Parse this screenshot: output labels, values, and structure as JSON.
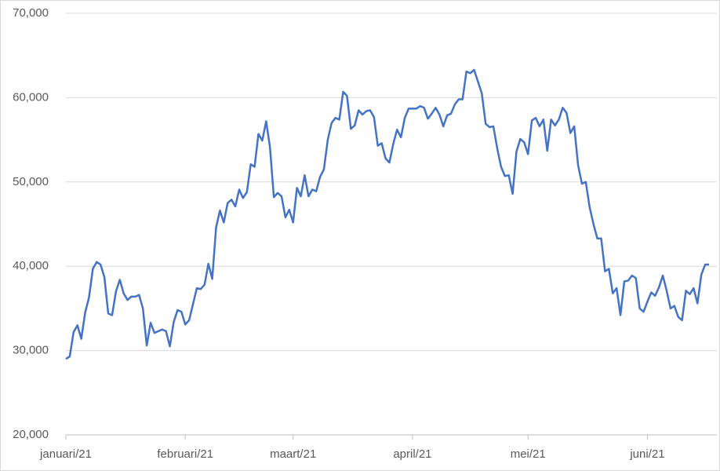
{
  "chart_data": {
    "type": "line",
    "categories": [
      "januari/21",
      null,
      null,
      null,
      null,
      null,
      null,
      null,
      null,
      null,
      null,
      null,
      null,
      null,
      null,
      null,
      null,
      null,
      null,
      null,
      null,
      null,
      null,
      null,
      null,
      null,
      null,
      null,
      null,
      null,
      null,
      "februari/21",
      null,
      null,
      null,
      null,
      null,
      null,
      null,
      null,
      null,
      null,
      null,
      null,
      null,
      null,
      null,
      null,
      null,
      null,
      null,
      null,
      null,
      null,
      null,
      null,
      null,
      null,
      null,
      "maart/21",
      null,
      null,
      null,
      null,
      null,
      null,
      null,
      null,
      null,
      null,
      null,
      null,
      null,
      null,
      null,
      null,
      null,
      null,
      null,
      null,
      null,
      null,
      null,
      null,
      null,
      null,
      null,
      null,
      null,
      null,
      "april/21",
      null,
      null,
      null,
      null,
      null,
      null,
      null,
      null,
      null,
      null,
      null,
      null,
      null,
      null,
      null,
      null,
      null,
      null,
      null,
      null,
      null,
      null,
      null,
      null,
      null,
      null,
      null,
      null,
      null,
      "mei/21",
      null,
      null,
      null,
      null,
      null,
      null,
      null,
      null,
      null,
      null,
      null,
      null,
      null,
      null,
      null,
      null,
      null,
      null,
      null,
      null,
      null,
      null,
      null,
      null,
      null,
      null,
      null,
      null,
      null,
      null,
      "juni/21",
      null,
      null,
      null,
      null,
      null,
      null,
      null,
      null,
      null,
      null,
      null,
      null,
      null,
      null,
      null,
      null
    ],
    "series": [
      {
        "color": "#4472c4",
        "values": [
          29000,
          29300,
          32200,
          33000,
          31400,
          34500,
          36300,
          39700,
          40500,
          40200,
          38700,
          34400,
          34200,
          37000,
          38400,
          36800,
          36000,
          36400,
          36400,
          36600,
          35000,
          30600,
          33300,
          32100,
          32300,
          32500,
          32300,
          30500,
          33400,
          34800,
          34600,
          33100,
          33600,
          35500,
          37400,
          37300,
          37800,
          40300,
          38500,
          44600,
          46600,
          45200,
          47500,
          47900,
          47100,
          49100,
          48100,
          48800,
          52100,
          51800,
          55700,
          54900,
          57200,
          54100,
          48200,
          48700,
          48300,
          45800,
          46700,
          45200,
          49300,
          48300,
          50800,
          48300,
          49100,
          48900,
          50600,
          51500,
          55000,
          57000,
          57600,
          57400,
          60700,
          60200,
          56300,
          56700,
          58500,
          58000,
          58400,
          58500,
          57700,
          54300,
          54600,
          52800,
          52300,
          54500,
          56200,
          55300,
          57600,
          58700,
          58700,
          58700,
          59000,
          58800,
          57500,
          58100,
          58800,
          58000,
          56600,
          57900,
          58100,
          59200,
          59800,
          59800,
          63100,
          62900,
          63300,
          61900,
          60500,
          56900,
          56500,
          56600,
          54000,
          51800,
          50700,
          50800,
          48600,
          53600,
          55100,
          54700,
          53300,
          57300,
          57600,
          56600,
          57400,
          53700,
          57400,
          56700,
          57400,
          58800,
          58200,
          55800,
          56600,
          52000,
          49800,
          50000,
          47000,
          45000,
          43300,
          43300,
          39400,
          39700,
          36800,
          37400,
          34200,
          38200,
          38300,
          38900,
          38600,
          35000,
          34600,
          35800,
          36900,
          36500,
          37500,
          38900,
          37100,
          35000,
          35300,
          34000,
          33600,
          37100,
          36700,
          37400,
          35600,
          39000,
          40200,
          40200
        ]
      }
    ],
    "ylim": [
      20000,
      70000
    ],
    "yticks": [
      {
        "value": 20000,
        "label": "20,000"
      },
      {
        "value": 30000,
        "label": "30,000"
      },
      {
        "value": 40000,
        "label": "40,000"
      },
      {
        "value": 50000,
        "label": "50,000"
      },
      {
        "value": 60000,
        "label": "60,000"
      },
      {
        "value": 70000,
        "label": "70,000"
      }
    ],
    "grid": true
  }
}
